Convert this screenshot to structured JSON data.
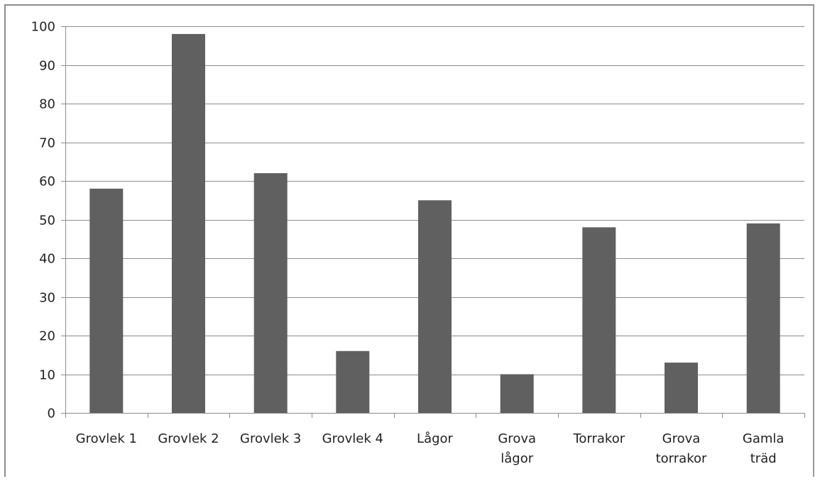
{
  "chart_data": {
    "type": "bar",
    "categories": [
      [
        "Grovlek 1"
      ],
      [
        "Grovlek 2"
      ],
      [
        "Grovlek 3"
      ],
      [
        "Grovlek 4"
      ],
      [
        "Lågor"
      ],
      [
        "Grova",
        "lågor"
      ],
      [
        "Torrakor"
      ],
      [
        "Grova",
        "torrakor"
      ],
      [
        "Gamla",
        "träd"
      ]
    ],
    "values": [
      58,
      98,
      62,
      16,
      55,
      10,
      48,
      13,
      49
    ],
    "ylim": [
      0,
      100
    ],
    "yticks": [
      "0",
      "10",
      "20",
      "30",
      "40",
      "50",
      "60",
      "70",
      "80",
      "90",
      "100"
    ],
    "grid": true,
    "legend": "none",
    "colors": {
      "bar": "#606060",
      "grid": "#8c8c8c",
      "axis": "#8c8c8c"
    }
  }
}
